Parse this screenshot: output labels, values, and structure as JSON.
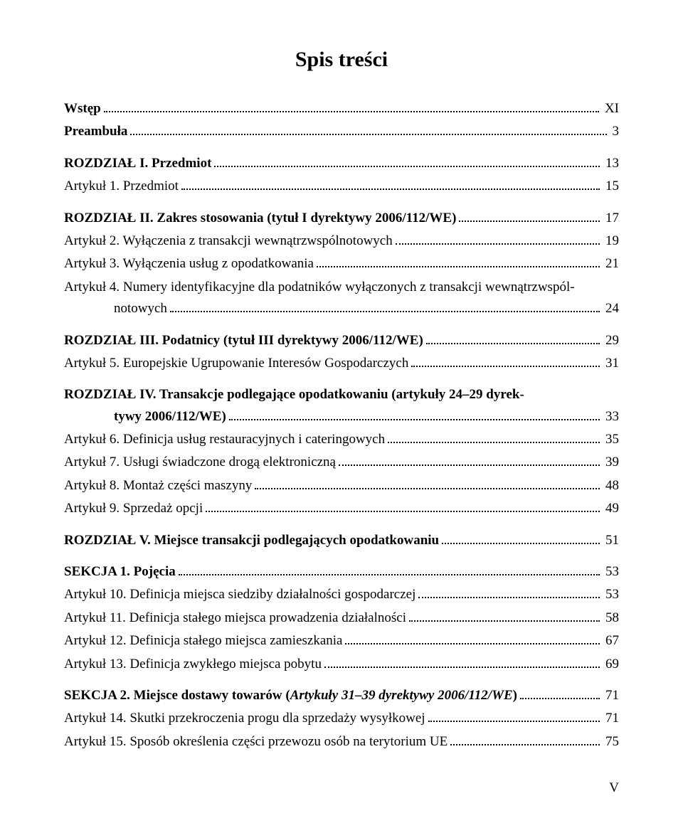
{
  "title": "Spis treści",
  "entries": [
    {
      "label": "Wstęp",
      "page": "XI",
      "bold": true
    },
    {
      "label": "Preambuła",
      "page": "3",
      "bold": true
    },
    {
      "label": "ROZDZIAŁ I. Przedmiot",
      "page": "13",
      "bold": true,
      "gap": true
    },
    {
      "label": "Artykuł 1. Przedmiot",
      "page": "15"
    },
    {
      "label": "ROZDZIAŁ II. Zakres stosowania (tytuł I dyrektywy 2006/112/WE)",
      "page": "17",
      "bold": true,
      "gap": true
    },
    {
      "label": "Artykuł 2. Wyłączenia z transakcji wewnątrzwspólnotowych",
      "page": "19"
    },
    {
      "label": "Artykuł 3. Wyłączenia usług z opodatkowania",
      "page": "21"
    },
    {
      "multiline": true,
      "line1": "Artykuł 4. Numery identyfikacyjne dla podatników wyłączonych z transakcji wewnątrzwspól-",
      "line2": "notowych",
      "page": "24"
    },
    {
      "label": "ROZDZIAŁ III. Podatnicy (tytuł III dyrektywy 2006/112/WE)",
      "page": "29",
      "bold": true,
      "gap": true
    },
    {
      "label": "Artykuł 5. Europejskie Ugrupowanie Interesów Gospodarczych",
      "page": "31"
    },
    {
      "multiline": true,
      "bold": true,
      "gap": true,
      "line1": "ROZDZIAŁ IV. Transakcje podlegające opodatkowaniu (artykuły 24–29 dyrek-",
      "line2": "tywy 2006/112/WE)",
      "page": "33"
    },
    {
      "label": "Artykuł 6. Definicja usług restauracyjnych i cateringowych",
      "page": "35"
    },
    {
      "label": "Artykuł 7. Usługi świadczone drogą elektroniczną",
      "page": "39"
    },
    {
      "label": "Artykuł 8. Montaż części maszyny",
      "page": "48"
    },
    {
      "label": "Artykuł 9. Sprzedaż opcji",
      "page": "49"
    },
    {
      "label": "ROZDZIAŁ V. Miejsce transakcji podlegających opodatkowaniu",
      "page": "51",
      "bold": true,
      "gap": true
    },
    {
      "label": "SEKCJA 1. Pojęcia",
      "page": "53",
      "bold": true,
      "gap": true
    },
    {
      "label": "Artykuł 10. Definicja miejsca siedziby działalności gospodarczej",
      "page": "53"
    },
    {
      "label": "Artykuł 11. Definicja stałego miejsca prowadzenia działalności",
      "page": "58"
    },
    {
      "label": "Artykuł 12. Definicja stałego miejsca zamieszkania",
      "page": "67"
    },
    {
      "label": "Artykuł 13. Definicja zwykłego miejsca pobytu",
      "page": "69"
    },
    {
      "label_parts": [
        {
          "text": "SEKCJA 2. Miejsce dostawy towarów (",
          "bold": true
        },
        {
          "text": "Artykuły 31–39 dyrektywy 2006/112/WE",
          "bold": true,
          "italic": true
        },
        {
          "text": ")",
          "bold": true
        }
      ],
      "page": "71",
      "gap": true
    },
    {
      "label": "Artykuł 14. Skutki przekroczenia progu dla sprzedaży wysyłkowej",
      "page": "71"
    },
    {
      "label": "Artykuł 15. Sposób określenia części przewozu osób na terytorium UE",
      "page": "75"
    }
  ],
  "footer": "V"
}
